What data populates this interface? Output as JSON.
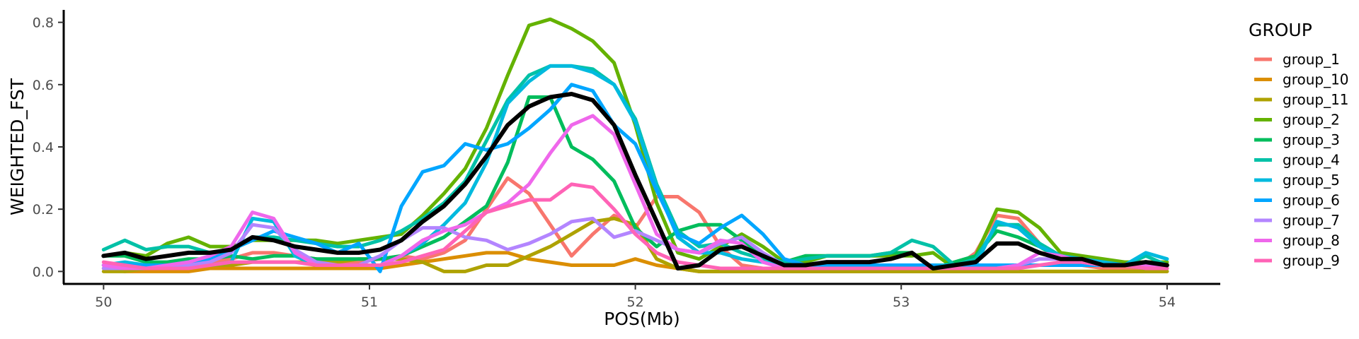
{
  "chart_data": {
    "type": "line",
    "title": "",
    "xlabel": "POS(Mb)",
    "ylabel": "WEIGHTED_FST",
    "xlim": [
      49.85,
      54.2
    ],
    "ylim": [
      -0.04,
      0.84
    ],
    "x_ticks": [
      50,
      51,
      52,
      53,
      54
    ],
    "x_tick_labels": [
      "50",
      "51",
      "52",
      "53",
      "54"
    ],
    "y_ticks": [
      0.0,
      0.2,
      0.4,
      0.6,
      0.8
    ],
    "y_tick_labels": [
      "0.0",
      "0.2",
      "0.4",
      "0.6",
      "0.8"
    ],
    "grid": false,
    "legend": {
      "title": "GROUP",
      "position": "right"
    },
    "x": [
      50.0,
      50.08,
      50.16,
      50.24,
      50.32,
      50.4,
      50.48,
      50.56,
      50.64,
      50.72,
      50.8,
      50.88,
      50.96,
      51.04,
      51.12,
      51.2,
      51.28,
      51.36,
      51.44,
      51.52,
      51.6,
      51.68,
      51.76,
      51.84,
      51.92,
      52.0,
      52.08,
      52.16,
      52.24,
      52.32,
      52.4,
      52.48,
      52.56,
      52.64,
      52.72,
      52.8,
      52.88,
      52.96,
      53.04,
      53.12,
      53.2,
      53.28,
      53.36,
      53.44,
      53.52,
      53.6,
      53.68,
      53.76,
      53.84,
      53.92,
      54.0
    ],
    "series": [
      {
        "name": "group_1",
        "color": "#F8766D",
        "values": [
          0.02,
          0.01,
          0.01,
          0.02,
          0.02,
          0.03,
          0.04,
          0.06,
          0.06,
          0.05,
          0.04,
          0.03,
          0.03,
          0.04,
          0.05,
          0.04,
          0.06,
          0.1,
          0.2,
          0.3,
          0.25,
          0.15,
          0.05,
          0.12,
          0.18,
          0.14,
          0.24,
          0.24,
          0.19,
          0.08,
          0.02,
          0.01,
          0.01,
          0.01,
          0.01,
          0.01,
          0.01,
          0.01,
          0.01,
          0.01,
          0.01,
          0.06,
          0.18,
          0.17,
          0.09,
          0.03,
          0.02,
          0.01,
          0.01,
          0.01,
          0.01
        ]
      },
      {
        "name": "group_10",
        "color": "#DB8E00",
        "values": [
          0.01,
          0.0,
          0.0,
          0.0,
          0.0,
          0.01,
          0.01,
          0.01,
          0.01,
          0.01,
          0.01,
          0.01,
          0.01,
          0.01,
          0.02,
          0.03,
          0.04,
          0.05,
          0.06,
          0.06,
          0.04,
          0.03,
          0.02,
          0.02,
          0.02,
          0.04,
          0.02,
          0.01,
          0.0,
          0.0,
          0.0,
          0.0,
          0.0,
          0.0,
          0.0,
          0.0,
          0.0,
          0.0,
          0.0,
          0.0,
          0.0,
          0.0,
          0.0,
          0.0,
          0.0,
          0.0,
          0.0,
          0.0,
          0.0,
          0.0,
          0.0
        ]
      },
      {
        "name": "group_11",
        "color": "#AEA200",
        "values": [
          0.0,
          0.0,
          0.01,
          0.01,
          0.02,
          0.02,
          0.02,
          0.03,
          0.03,
          0.03,
          0.03,
          0.03,
          0.04,
          0.04,
          0.04,
          0.03,
          0.0,
          0.0,
          0.02,
          0.02,
          0.05,
          0.08,
          0.12,
          0.16,
          0.17,
          0.15,
          0.04,
          0.01,
          0.0,
          0.0,
          0.0,
          0.0,
          0.0,
          0.0,
          0.0,
          0.0,
          0.0,
          0.0,
          0.0,
          0.0,
          0.0,
          0.0,
          0.0,
          0.0,
          0.0,
          0.0,
          0.0,
          0.0,
          0.0,
          0.0,
          0.0
        ]
      },
      {
        "name": "group_2",
        "color": "#64B200",
        "values": [
          0.05,
          0.06,
          0.05,
          0.09,
          0.11,
          0.08,
          0.08,
          0.1,
          0.1,
          0.1,
          0.1,
          0.09,
          0.1,
          0.11,
          0.12,
          0.18,
          0.25,
          0.33,
          0.46,
          0.63,
          0.79,
          0.81,
          0.78,
          0.74,
          0.67,
          0.47,
          0.22,
          0.06,
          0.04,
          0.08,
          0.12,
          0.08,
          0.03,
          0.03,
          0.05,
          0.05,
          0.05,
          0.05,
          0.05,
          0.06,
          0.01,
          0.05,
          0.2,
          0.19,
          0.14,
          0.06,
          0.05,
          0.04,
          0.03,
          0.03,
          0.03
        ]
      },
      {
        "name": "group_3",
        "color": "#00BD5C",
        "values": [
          0.05,
          0.05,
          0.03,
          0.03,
          0.04,
          0.04,
          0.05,
          0.04,
          0.05,
          0.05,
          0.04,
          0.04,
          0.04,
          0.04,
          0.05,
          0.08,
          0.11,
          0.16,
          0.21,
          0.35,
          0.56,
          0.56,
          0.4,
          0.36,
          0.29,
          0.14,
          0.08,
          0.13,
          0.15,
          0.15,
          0.1,
          0.05,
          0.03,
          0.05,
          0.05,
          0.05,
          0.05,
          0.06,
          0.06,
          0.01,
          0.03,
          0.05,
          0.13,
          0.11,
          0.08,
          0.04,
          0.03,
          0.03,
          0.02,
          0.01,
          0.02
        ]
      },
      {
        "name": "group_4",
        "color": "#00C1A7",
        "values": [
          0.07,
          0.1,
          0.07,
          0.08,
          0.08,
          0.06,
          0.07,
          0.11,
          0.11,
          0.1,
          0.09,
          0.08,
          0.08,
          0.1,
          0.13,
          0.17,
          0.22,
          0.29,
          0.42,
          0.55,
          0.63,
          0.66,
          0.66,
          0.65,
          0.6,
          0.49,
          0.28,
          0.13,
          0.08,
          0.09,
          0.06,
          0.04,
          0.03,
          0.04,
          0.05,
          0.05,
          0.05,
          0.06,
          0.1,
          0.08,
          0.02,
          0.04,
          0.15,
          0.15,
          0.09,
          0.05,
          0.04,
          0.03,
          0.02,
          0.05,
          0.02
        ]
      },
      {
        "name": "group_5",
        "color": "#00BADE",
        "values": [
          0.02,
          0.03,
          0.02,
          0.02,
          0.02,
          0.02,
          0.03,
          0.17,
          0.16,
          0.05,
          0.02,
          0.02,
          0.02,
          0.02,
          0.05,
          0.09,
          0.15,
          0.22,
          0.35,
          0.54,
          0.61,
          0.66,
          0.66,
          0.64,
          0.6,
          0.48,
          0.27,
          0.11,
          0.06,
          0.06,
          0.04,
          0.03,
          0.02,
          0.02,
          0.02,
          0.02,
          0.02,
          0.02,
          0.02,
          0.02,
          0.02,
          0.02,
          0.16,
          0.14,
          0.08,
          0.05,
          0.04,
          0.03,
          0.02,
          0.06,
          0.04
        ]
      },
      {
        "name": "group_6",
        "color": "#00A6FF",
        "values": [
          0.02,
          0.02,
          0.02,
          0.02,
          0.03,
          0.04,
          0.07,
          0.1,
          0.13,
          0.11,
          0.09,
          0.06,
          0.09,
          0.0,
          0.21,
          0.32,
          0.34,
          0.41,
          0.39,
          0.41,
          0.46,
          0.52,
          0.6,
          0.58,
          0.47,
          0.41,
          0.26,
          0.12,
          0.09,
          0.14,
          0.18,
          0.12,
          0.04,
          0.02,
          0.02,
          0.02,
          0.02,
          0.02,
          0.02,
          0.02,
          0.01,
          0.02,
          0.02,
          0.02,
          0.02,
          0.02,
          0.02,
          0.02,
          0.02,
          0.02,
          0.02
        ]
      },
      {
        "name": "group_7",
        "color": "#B385FF",
        "values": [
          0.01,
          0.01,
          0.01,
          0.01,
          0.02,
          0.03,
          0.06,
          0.15,
          0.14,
          0.07,
          0.03,
          0.02,
          0.02,
          0.05,
          0.1,
          0.14,
          0.14,
          0.11,
          0.1,
          0.07,
          0.09,
          0.12,
          0.16,
          0.17,
          0.11,
          0.13,
          0.1,
          0.07,
          0.06,
          0.09,
          0.11,
          0.06,
          0.02,
          0.01,
          0.01,
          0.01,
          0.01,
          0.01,
          0.01,
          0.01,
          0.01,
          0.01,
          0.01,
          0.02,
          0.04,
          0.04,
          0.03,
          0.02,
          0.02,
          0.02,
          0.02
        ]
      },
      {
        "name": "group_8",
        "color": "#EF67EB",
        "values": [
          0.02,
          0.01,
          0.01,
          0.02,
          0.03,
          0.05,
          0.08,
          0.19,
          0.17,
          0.06,
          0.02,
          0.02,
          0.02,
          0.02,
          0.05,
          0.1,
          0.13,
          0.15,
          0.19,
          0.22,
          0.28,
          0.38,
          0.47,
          0.5,
          0.44,
          0.28,
          0.12,
          0.07,
          0.06,
          0.1,
          0.09,
          0.03,
          0.01,
          0.01,
          0.01,
          0.01,
          0.01,
          0.01,
          0.01,
          0.01,
          0.01,
          0.01,
          0.01,
          0.02,
          0.06,
          0.05,
          0.03,
          0.02,
          0.02,
          0.02,
          0.02
        ]
      },
      {
        "name": "group_9",
        "color": "#FF63B6",
        "values": [
          0.03,
          0.02,
          0.01,
          0.01,
          0.01,
          0.02,
          0.03,
          0.03,
          0.03,
          0.03,
          0.02,
          0.02,
          0.02,
          0.02,
          0.03,
          0.05,
          0.07,
          0.13,
          0.19,
          0.21,
          0.23,
          0.23,
          0.28,
          0.27,
          0.2,
          0.12,
          0.06,
          0.03,
          0.02,
          0.01,
          0.01,
          0.01,
          0.01,
          0.01,
          0.01,
          0.01,
          0.01,
          0.01,
          0.01,
          0.01,
          0.01,
          0.01,
          0.01,
          0.01,
          0.02,
          0.03,
          0.03,
          0.02,
          0.02,
          0.01,
          0.01
        ]
      }
    ],
    "mean_series": {
      "name": "mean",
      "color": "#000000",
      "values": [
        0.05,
        0.06,
        0.04,
        0.05,
        0.06,
        0.06,
        0.07,
        0.11,
        0.1,
        0.08,
        0.07,
        0.06,
        0.06,
        0.07,
        0.1,
        0.16,
        0.21,
        0.28,
        0.37,
        0.47,
        0.53,
        0.56,
        0.57,
        0.55,
        0.47,
        0.31,
        0.16,
        0.01,
        0.02,
        0.07,
        0.08,
        0.05,
        0.02,
        0.02,
        0.03,
        0.03,
        0.03,
        0.04,
        0.06,
        0.01,
        0.02,
        0.03,
        0.09,
        0.09,
        0.06,
        0.04,
        0.04,
        0.02,
        0.02,
        0.03,
        0.02
      ]
    }
  }
}
